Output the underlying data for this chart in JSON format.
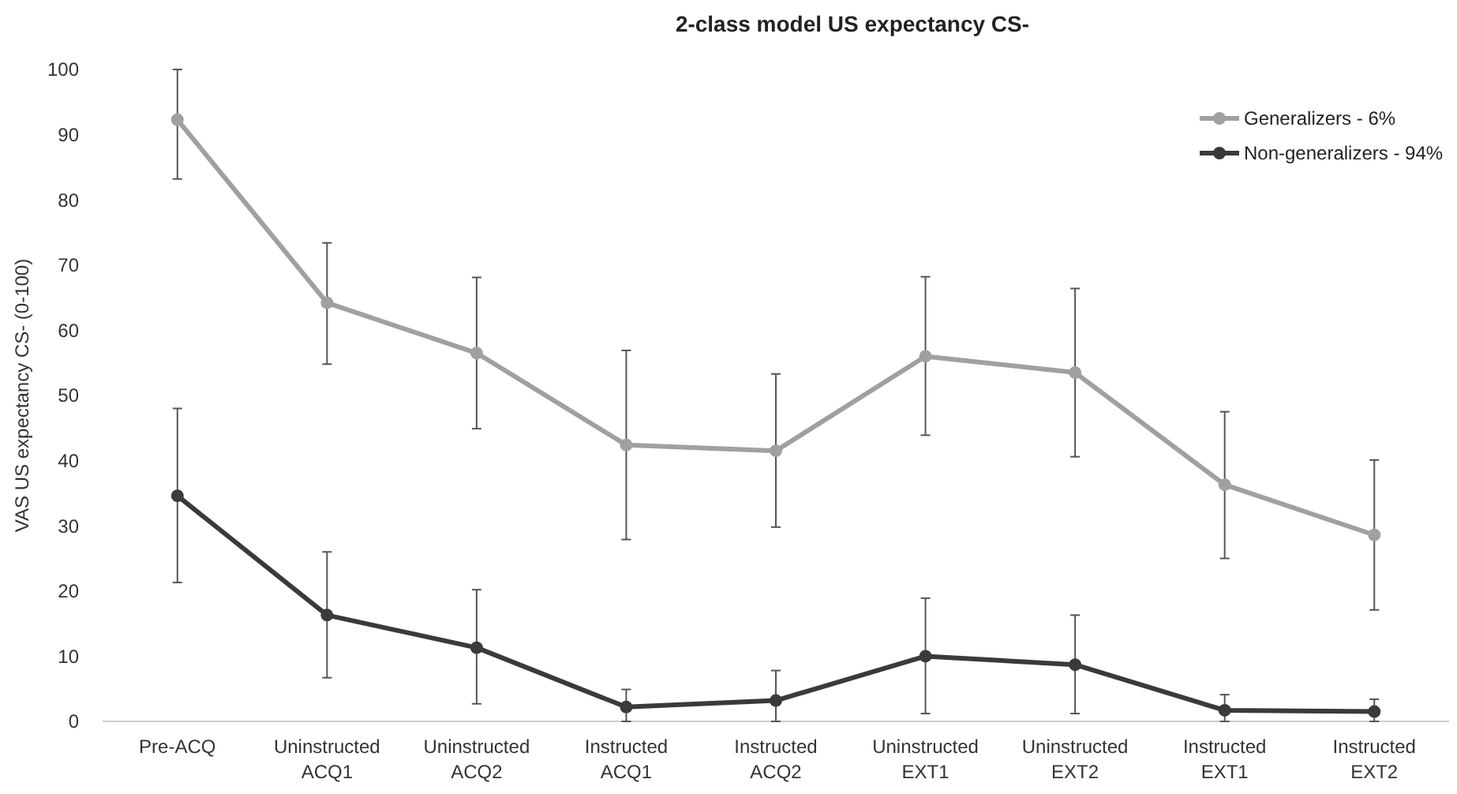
{
  "chart_data": {
    "type": "line",
    "title": "2-class model US expectancy CS-",
    "ylabel": "VAS US expectancy CS- (0-100)",
    "categories": [
      "Pre-ACQ",
      "Uninstructed ACQ1",
      "Uninstructed ACQ2",
      "Instructed ACQ1",
      "Instructed ACQ2",
      "Uninstructed EXT1",
      "Uninstructed EXT2",
      "Instructed EXT1",
      "Instructed EXT2"
    ],
    "ylim": [
      0,
      100
    ],
    "yticks": [
      0,
      10,
      20,
      30,
      40,
      50,
      60,
      70,
      80,
      90,
      100
    ],
    "grid": false,
    "legend": "top right",
    "marker": "circle",
    "line_style": "solid",
    "series": [
      {
        "name": "Generalizers - 6%",
        "color": "#a0a0a0",
        "values": [
          92.3,
          64.2,
          56.5,
          42.4,
          41.5,
          56.0,
          53.5,
          36.3,
          28.6
        ],
        "errors": [
          [
            83.2,
            100
          ],
          [
            54.8,
            73.4
          ],
          [
            44.9,
            68.1
          ],
          [
            27.9,
            56.9
          ],
          [
            29.8,
            53.3
          ],
          [
            43.9,
            68.2
          ],
          [
            40.6,
            66.4
          ],
          [
            25.0,
            47.5
          ],
          [
            17.1,
            40.1
          ]
        ]
      },
      {
        "name": "Non-generalizers - 94%",
        "color": "#3a3a3a",
        "values": [
          34.6,
          16.3,
          11.3,
          2.2,
          3.2,
          10.0,
          8.7,
          1.7,
          1.5
        ],
        "errors": [
          [
            21.3,
            48.0
          ],
          [
            6.7,
            26.0
          ],
          [
            2.7,
            20.2
          ],
          [
            0,
            4.9
          ],
          [
            0,
            7.8
          ],
          [
            1.2,
            18.9
          ],
          [
            1.2,
            16.3
          ],
          [
            0,
            4.1
          ],
          [
            0,
            3.4
          ]
        ]
      }
    ]
  }
}
